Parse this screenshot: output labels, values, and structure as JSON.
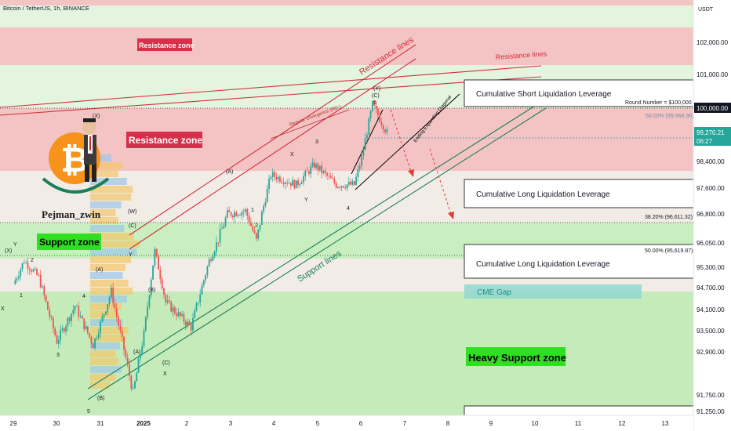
{
  "header": {
    "title": "Bitcoin / TetherUS, 1h, BINANCE",
    "currency": "USDT"
  },
  "author": "Pejman_zwin",
  "colors": {
    "resistance_zone": "#f2c4c4",
    "support_zone": "#c9eec0",
    "heavy_support_zone": "#c5ebba",
    "up_candle": "#26a69a",
    "down_candle": "#ef5350",
    "resistance_line": "#d32f3f",
    "support_line": "#1b7f5a",
    "cme_gap": "#8fd8cf"
  },
  "zones": {
    "resistance_big_label": "Resistance zone",
    "resistance_small_label": "Resistance zone",
    "support_label": "Support zone",
    "heavy_support_label": "Heavy Support zone",
    "cme_gap_label": "CME Gap"
  },
  "boxes": [
    {
      "label": "Cumulative Short Liquidation Leverage"
    },
    {
      "label": "Cumulative Long Liquidation Leverage"
    },
    {
      "label": "Cumulative Long Liquidation Leverage"
    }
  ],
  "annotations": {
    "resistance_lines_1": "Resistance lines",
    "resistance_lines_2": "Resistance lines",
    "support_lines": "Support lines",
    "regular_divergence": "Regular Divergence (RD-)",
    "ending_diagonal": "Ending Expanding Diagonal",
    "round_number": "Round Number = $100,000"
  },
  "fib_levels": [
    {
      "label": "50.00% (99,968.36)"
    },
    {
      "label": "38.20% (96,611.32)"
    },
    {
      "label": "50.00% (95,619.87)"
    }
  ],
  "price_axis": {
    "ticks": [
      "102,000.00",
      "101,000.00",
      "100,000.00",
      "98,400.00",
      "97,600.00",
      "96,800.00",
      "96,050.00",
      "95,300.00",
      "94,700.00",
      "94,100.00",
      "93,500.00",
      "92,900.00",
      "91,750.00",
      "91,250.00"
    ],
    "current_price": "99,270.21",
    "countdown": "06:27"
  },
  "time_axis": [
    "29",
    "30",
    "31",
    "2025",
    "2",
    "3",
    "4",
    "5",
    "6",
    "7",
    "8",
    "9",
    "10",
    "11",
    "12",
    "13"
  ],
  "wave_labels": [
    "Y",
    "2",
    "4",
    "1",
    "X",
    "3",
    "5",
    "(A)",
    "(B)",
    "(A)",
    "(B)",
    "(C)",
    "(C)",
    "X",
    "Y",
    "(X)",
    "(X)",
    "(W)",
    "(A)",
    "1",
    "2",
    "X",
    "Y",
    "3",
    "4",
    "5",
    "(C)",
    "(Y)"
  ],
  "chart_data": {
    "type": "candlestick",
    "symbol": "BTC/USDT",
    "interval": "1h",
    "y_unit": "USDT",
    "ylim": [
      91000,
      103000
    ],
    "x_range": [
      "Dec 29, 2024",
      "Jan 13, 2025"
    ],
    "path_points": [
      {
        "date": "2024-12-29 00:00",
        "price": 94800
      },
      {
        "date": "2024-12-29 06:00",
        "price": 95500
      },
      {
        "date": "2024-12-29 14:00",
        "price": 95000
      },
      {
        "date": "2024-12-30 00:00",
        "price": 93200
      },
      {
        "date": "2024-12-30 10:00",
        "price": 94200
      },
      {
        "date": "2024-12-30 20:00",
        "price": 93100
      },
      {
        "date": "2024-12-31 06:00",
        "price": 94600
      },
      {
        "date": "2024-12-31 18:00",
        "price": 91800
      },
      {
        "date": "2025-01-01 00:00",
        "price": 93400
      },
      {
        "date": "2025-01-01 06:00",
        "price": 95800
      },
      {
        "date": "2025-01-01 12:00",
        "price": 94300
      },
      {
        "date": "2025-01-01 18:00",
        "price": 94000
      },
      {
        "date": "2025-01-02 02:00",
        "price": 93600
      },
      {
        "date": "2025-01-02 12:00",
        "price": 95500
      },
      {
        "date": "2025-01-02 22:00",
        "price": 96800
      },
      {
        "date": "2025-01-03 08:00",
        "price": 96900
      },
      {
        "date": "2025-01-03 14:00",
        "price": 96100
      },
      {
        "date": "2025-01-03 22:00",
        "price": 98000
      },
      {
        "date": "2025-01-04 12:00",
        "price": 97700
      },
      {
        "date": "2025-01-04 22:00",
        "price": 98300
      },
      {
        "date": "2025-01-05 10:00",
        "price": 97700
      },
      {
        "date": "2025-01-05 20:00",
        "price": 97700
      },
      {
        "date": "2025-01-06 00:00",
        "price": 98500
      },
      {
        "date": "2025-01-06 06:00",
        "price": 100100
      },
      {
        "date": "2025-01-06 14:00",
        "price": 99270
      }
    ],
    "horizontal_levels": [
      {
        "name": "Round Number",
        "price": 100000
      },
      {
        "name": "Fib 50.00%",
        "price": 99968.36
      },
      {
        "name": "Fib 38.20%",
        "price": 96611.32
      },
      {
        "name": "Fib 50.00%",
        "price": 95619.87
      }
    ],
    "current_price": 99270.21
  }
}
